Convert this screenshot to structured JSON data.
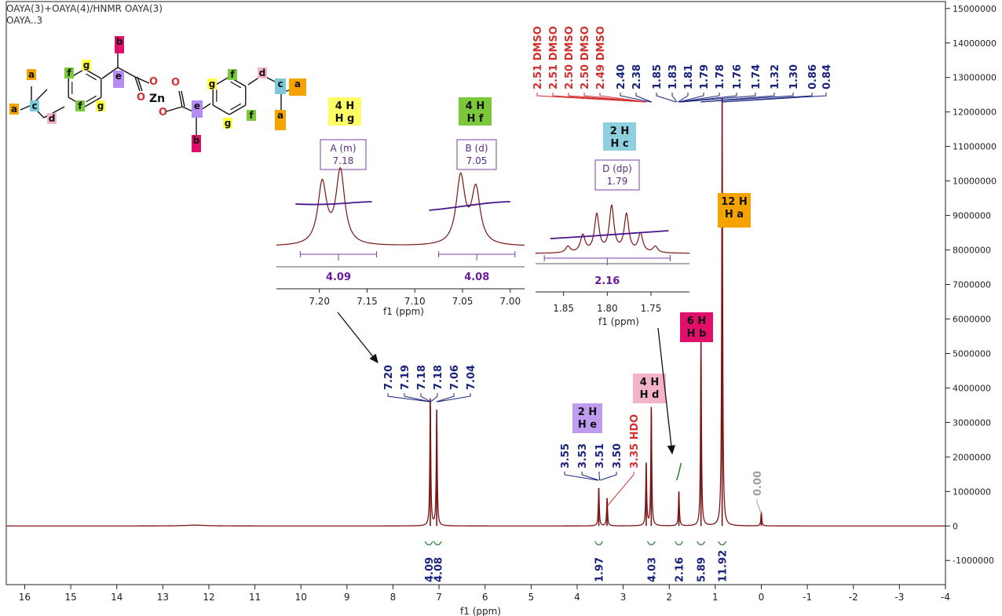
{
  "header": {
    "line1": "OAYA(3)+OAYA(4)/HNMR OAYA(3)",
    "line2": "OAYA..3"
  },
  "molecule": {
    "zn_label": "Zn",
    "o_label": "O",
    "atom_labels": [
      {
        "text": "a",
        "color": "#f5a300"
      },
      {
        "text": "b",
        "color": "#e0106a"
      },
      {
        "text": "c",
        "color": "#7ec8d8"
      },
      {
        "text": "d",
        "color": "#f4b4c8"
      },
      {
        "text": "e",
        "color": "#b48cf0"
      },
      {
        "text": "f",
        "color": "#7cc83c"
      },
      {
        "text": "g",
        "color": "#ffff40"
      }
    ]
  },
  "chart_data": {
    "type": "line",
    "title": "",
    "xlabel": "f1 (ppm)",
    "ylabel": "",
    "xlim": [
      16.4,
      -4.0
    ],
    "ylim": [
      -1700000,
      15200000
    ],
    "x_ticks": [
      "16",
      "15",
      "14",
      "13",
      "12",
      "11",
      "10",
      "9",
      "8",
      "7",
      "6",
      "5",
      "4",
      "3",
      "2",
      "1",
      "0",
      "-1",
      "-2",
      "-3",
      "-4"
    ],
    "y_ticks": [
      "15000000",
      "14000000",
      "13000000",
      "12000000",
      "11000000",
      "10000000",
      "9000000",
      "8000000",
      "7000000",
      "6000000",
      "5000000",
      "4000000",
      "3000000",
      "2000000",
      "1000000",
      "0",
      "-1000000"
    ],
    "peaks": [
      {
        "ppm": 7.19,
        "height": 3700000
      },
      {
        "ppm": 7.05,
        "height": 3350000
      },
      {
        "ppm": 3.53,
        "height": 1100000
      },
      {
        "ppm": 3.35,
        "height": 800000
      },
      {
        "ppm": 2.5,
        "height": 1800000
      },
      {
        "ppm": 2.39,
        "height": 3450000
      },
      {
        "ppm": 1.79,
        "height": 1000000
      },
      {
        "ppm": 1.31,
        "height": 5400000
      },
      {
        "ppm": 0.85,
        "height": 12400000
      },
      {
        "ppm": 0.0,
        "height": 400000
      }
    ],
    "peak_labels": [
      {
        "text": "7.20",
        "color": "#1a237e"
      },
      {
        "text": "7.19",
        "color": "#1a237e"
      },
      {
        "text": "7.18",
        "color": "#1a237e"
      },
      {
        "text": "7.18",
        "color": "#1a237e"
      },
      {
        "text": "7.06",
        "color": "#1a237e"
      },
      {
        "text": "7.04",
        "color": "#1a237e"
      },
      {
        "text": "3.55",
        "color": "#1a237e"
      },
      {
        "text": "3.53",
        "color": "#1a237e"
      },
      {
        "text": "3.51",
        "color": "#1a237e"
      },
      {
        "text": "3.50",
        "color": "#1a237e"
      },
      {
        "text": "3.35 HDO",
        "color": "#d32f2f"
      },
      {
        "text": "0.00",
        "color": "#9e9e9e"
      }
    ],
    "top_labels": [
      {
        "text": "2.51 DMSO",
        "color": "#d32f2f"
      },
      {
        "text": "2.51 DMSO",
        "color": "#d32f2f"
      },
      {
        "text": "2.50 DMSO",
        "color": "#d32f2f"
      },
      {
        "text": "2.50 DMSO",
        "color": "#d32f2f"
      },
      {
        "text": "2.49 DMSO",
        "color": "#d32f2f"
      },
      {
        "text": "2.40",
        "color": "#1a237e"
      },
      {
        "text": "2.38",
        "color": "#1a237e"
      },
      {
        "text": "1.85",
        "color": "#1a237e"
      },
      {
        "text": "1.83",
        "color": "#1a237e"
      },
      {
        "text": "1.81",
        "color": "#1a237e"
      },
      {
        "text": "1.79",
        "color": "#1a237e"
      },
      {
        "text": "1.78",
        "color": "#1a237e"
      },
      {
        "text": "1.76",
        "color": "#1a237e"
      },
      {
        "text": "1.74",
        "color": "#1a237e"
      },
      {
        "text": "1.32",
        "color": "#1a237e"
      },
      {
        "text": "1.30",
        "color": "#1a237e"
      },
      {
        "text": "0.86",
        "color": "#1a237e"
      },
      {
        "text": "0.84",
        "color": "#1a237e"
      }
    ],
    "integrals": [
      "4.09",
      "4.08",
      "1.97",
      "4.03",
      "2.16",
      "5.89",
      "11.92"
    ],
    "proton_labels": [
      {
        "count": "4 H",
        "label": "H g",
        "color": "#ffff66"
      },
      {
        "count": "4 H",
        "label": "H f",
        "color": "#7cc83c"
      },
      {
        "count": "2 H",
        "label": "H c",
        "color": "#8ecfe0"
      },
      {
        "count": "12 H",
        "label": "H a",
        "color": "#f5a300"
      },
      {
        "count": "6 H",
        "label": "H b",
        "color": "#e0106a"
      },
      {
        "count": "4 H",
        "label": "H d",
        "color": "#f4b4c8"
      },
      {
        "count": "2 H",
        "label": "H e",
        "color": "#c09cf0"
      }
    ],
    "multiplets": [
      {
        "name": "A (m)",
        "shift": "7.18"
      },
      {
        "name": "B (d)",
        "shift": "7.05"
      },
      {
        "name": "D (dp)",
        "shift": "1.79"
      }
    ],
    "inset_left": {
      "xlabel": "f1 (ppm)",
      "x_ticks": [
        "7.20",
        "7.15",
        "7.10",
        "7.05",
        "7.00"
      ],
      "integrals": [
        "4.09",
        "4.08"
      ]
    },
    "inset_right": {
      "xlabel": "f1 (ppm)",
      "x_ticks": [
        "1.85",
        "1.80",
        "1.75"
      ],
      "integrals": [
        "2.16"
      ]
    }
  }
}
